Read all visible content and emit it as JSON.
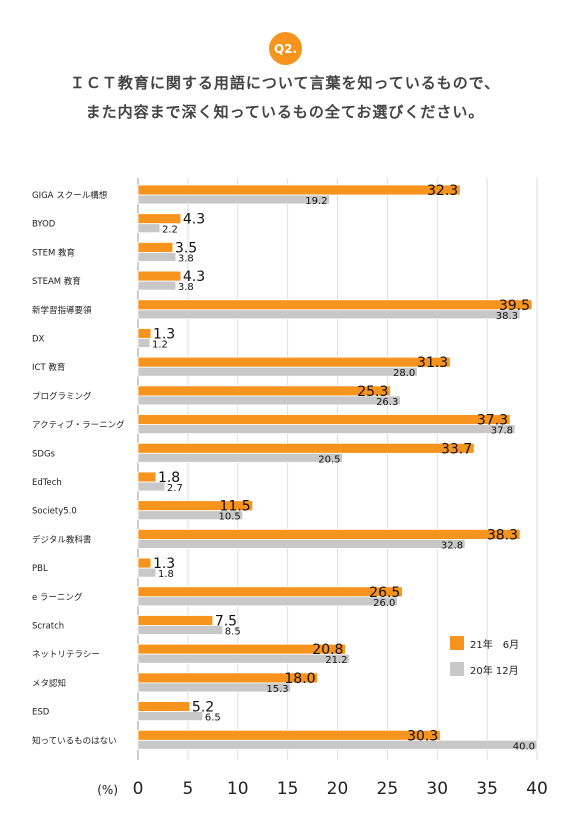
{
  "header": {
    "badge": "Q2.",
    "title_line1": "ＩＣＴ教育に関する用語について言葉を知っているもので、",
    "title_line2": "また内容まで深く知っているもの全てお選びください。"
  },
  "chart_data": {
    "type": "bar",
    "orientation": "horizontal",
    "categories": [
      "GIGA スクール構想",
      "BYOD",
      "STEM 教育",
      "STEAM 教育",
      "新学習指導要領",
      "DX",
      "ICT 教育",
      "プログラミング",
      "アクティブ・ラーニング",
      "SDGs",
      "EdTech",
      "Society5.0",
      "デジタル教科書",
      "PBL",
      "e ラーニング",
      "Scratch",
      "ネットリテラシー",
      "メタ認知",
      "ESD",
      "知っているものはない"
    ],
    "series": [
      {
        "name": "21年　6月",
        "color": "#f7941d",
        "values": [
          32.3,
          4.3,
          3.5,
          4.3,
          39.5,
          1.3,
          31.3,
          25.3,
          37.3,
          33.7,
          1.8,
          11.5,
          38.3,
          1.3,
          26.5,
          7.5,
          20.8,
          18.0,
          5.2,
          30.3
        ]
      },
      {
        "name": "20年 12月",
        "color": "#c8c8c8",
        "values": [
          19.2,
          2.2,
          3.8,
          3.8,
          38.3,
          1.2,
          28.0,
          26.3,
          37.8,
          20.5,
          2.7,
          10.5,
          32.8,
          1.8,
          26.0,
          8.5,
          21.2,
          15.3,
          6.5,
          40.0
        ]
      }
    ],
    "xunit_label": "(%)",
    "xlim": [
      0,
      40
    ],
    "xticks": [
      "0",
      "5",
      "10",
      "15",
      "20",
      "25",
      "30",
      "35",
      "40"
    ],
    "grid": true,
    "legend_position": "right"
  }
}
